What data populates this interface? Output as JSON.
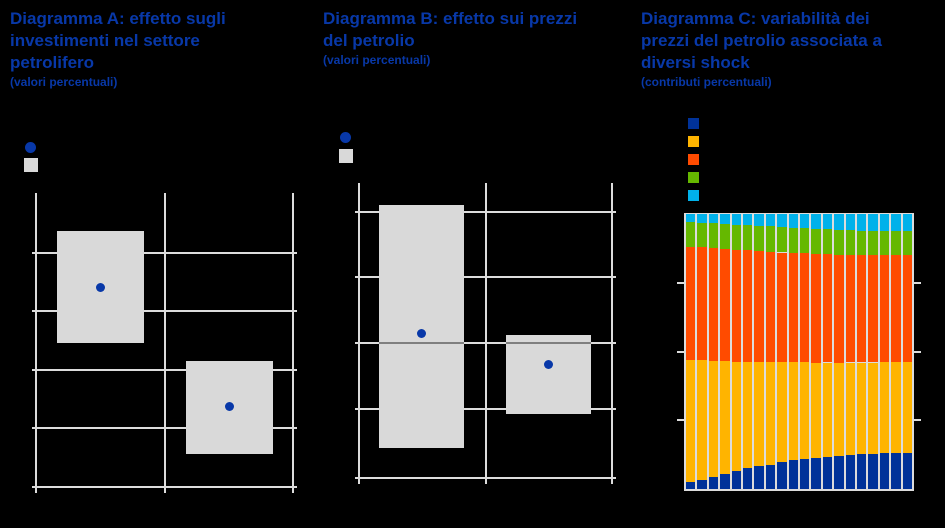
{
  "colors": {
    "background": "#000000",
    "accent_blue": "#0838A8",
    "grid": "#DCDCDC",
    "box_gray": "#D9D9D9",
    "zero_line_gray": "#7F7F7F"
  },
  "chart_data": [
    {
      "id": "diagramma-a",
      "type": "box-range",
      "title_lines": [
        "Diagramma A: effetto sugli",
        "investimenti nel settore",
        "petrolifero"
      ],
      "subtitle": "(valori percentuali)",
      "legend": [
        {
          "name": "point-estimate",
          "shape": "circle",
          "color": "#0838A8"
        },
        {
          "name": "uncertainty-range",
          "shape": "square",
          "color": "#D9D9D9"
        }
      ],
      "n_categories": 2,
      "boxes": [
        {
          "low": 2.46,
          "high": 4.37,
          "point": 3.41
        },
        {
          "low": 0.56,
          "high": 2.15,
          "point": 1.37
        }
      ],
      "ylim": [
        0,
        5.0
      ],
      "gridlines": [
        1,
        2,
        3,
        4
      ],
      "grid": true,
      "axis_tick_labels_visible": false,
      "legend_labels_visible": false
    },
    {
      "id": "diagramma-b",
      "type": "box-range",
      "title_lines": [
        "Diagramma B: effetto sui prezzi",
        "del petrolio"
      ],
      "subtitle": "(valori percentuali)",
      "legend": [
        {
          "name": "point-estimate",
          "shape": "circle",
          "color": "#0838A8"
        },
        {
          "name": "uncertainty-range",
          "shape": "square",
          "color": "#D9D9D9"
        }
      ],
      "n_categories": 2,
      "boxes": [
        {
          "low": -1.6,
          "high": 2.1,
          "point": 0.14
        },
        {
          "low": -1.08,
          "high": 0.12,
          "point": -0.32
        }
      ],
      "ylim": [
        -2.06,
        2.44
      ],
      "gridlines": [
        -1,
        0,
        1,
        2
      ],
      "zero_line": 0,
      "grid": true,
      "axis_tick_labels_visible": false,
      "legend_labels_visible": false
    },
    {
      "id": "diagramma-c",
      "type": "stacked-bar-100",
      "title_lines": [
        "Diagramma C: variabilità dei",
        "prezzi del petrolio associata a",
        "diversi shock"
      ],
      "subtitle": "(contributi percentuali)",
      "n_bars": 20,
      "ylim": [
        0,
        100
      ],
      "yticks": [
        25,
        50,
        75
      ],
      "axis_tick_labels_visible": false,
      "legend_labels_visible": false,
      "stack_order": "bottom-to-top follows series array order",
      "series": [
        {
          "name": "shock-dark-blue",
          "color": "#003299",
          "values": [
            2.7,
            3.2,
            4.2,
            5.3,
            6.4,
            7.6,
            8.2,
            8.9,
            9.8,
            10.4,
            11.0,
            11.4,
            11.7,
            12.1,
            12.4,
            12.7,
            12.9,
            13.1,
            13.2,
            13.0
          ]
        },
        {
          "name": "shock-amber",
          "color": "#FFB400",
          "values": [
            44.2,
            43.6,
            42.4,
            41.2,
            39.9,
            38.7,
            38.0,
            37.3,
            36.3,
            35.7,
            35.1,
            34.6,
            34.3,
            33.8,
            33.6,
            33.3,
            33.1,
            33.0,
            32.9,
            33.1
          ]
        },
        {
          "name": "shock-red",
          "color": "#FF4B00",
          "values": [
            41.2,
            41.1,
            41.0,
            40.9,
            40.7,
            40.5,
            40.3,
            40.1,
            39.9,
            39.7,
            39.6,
            39.5,
            39.4,
            39.3,
            39.2,
            39.1,
            39.1,
            39.0,
            39.0,
            39.0
          ]
        },
        {
          "name": "shock-green",
          "color": "#65B800",
          "values": [
            8.9,
            8.9,
            9.0,
            9.0,
            9.1,
            9.1,
            9.2,
            9.2,
            9.2,
            9.2,
            9.1,
            9.1,
            9.0,
            9.0,
            8.9,
            8.9,
            8.8,
            8.8,
            8.8,
            8.8
          ]
        },
        {
          "name": "shock-light-blue",
          "color": "#00B1EA",
          "values": [
            3.0,
            3.2,
            3.4,
            3.6,
            3.9,
            4.1,
            4.3,
            4.5,
            4.8,
            5.0,
            5.2,
            5.4,
            5.6,
            5.8,
            5.9,
            6.0,
            6.1,
            6.1,
            6.1,
            6.1
          ]
        }
      ]
    }
  ]
}
